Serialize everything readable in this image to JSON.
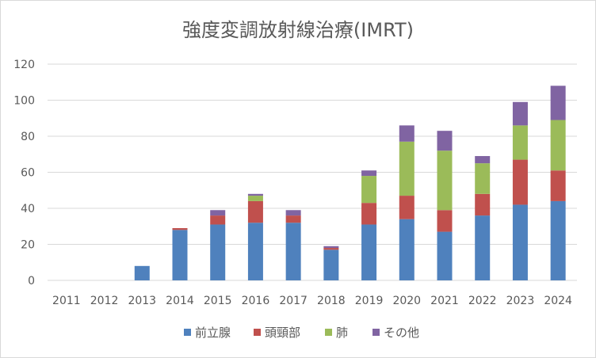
{
  "chart_data": {
    "type": "bar",
    "stacked": true,
    "title": "強度変調放射線治療(IMRT)",
    "xlabel": "",
    "ylabel": "",
    "ylim": [
      0,
      120
    ],
    "yticks": [
      0,
      20,
      40,
      60,
      80,
      100,
      120
    ],
    "grid": true,
    "legend_position": "bottom",
    "categories": [
      "2011",
      "2012",
      "2013",
      "2014",
      "2015",
      "2016",
      "2017",
      "2018",
      "2019",
      "2020",
      "2021",
      "2022",
      "2023",
      "2024"
    ],
    "series": [
      {
        "name": "前立腺",
        "color": "#4f81bd",
        "values": [
          0,
          0,
          8,
          28,
          31,
          32,
          32,
          17,
          31,
          34,
          27,
          36,
          42,
          44
        ]
      },
      {
        "name": "頭頸部",
        "color": "#c0504d",
        "values": [
          0,
          0,
          0,
          1,
          5,
          12,
          4,
          1,
          12,
          13,
          12,
          12,
          25,
          17
        ]
      },
      {
        "name": "肺",
        "color": "#9bbb59",
        "values": [
          0,
          0,
          0,
          0,
          0,
          3,
          0,
          0,
          15,
          30,
          33,
          17,
          19,
          28
        ]
      },
      {
        "name": "その他",
        "color": "#8064a2",
        "values": [
          0,
          0,
          0,
          0,
          3,
          1,
          3,
          1,
          3,
          9,
          11,
          4,
          13,
          19
        ]
      }
    ]
  }
}
